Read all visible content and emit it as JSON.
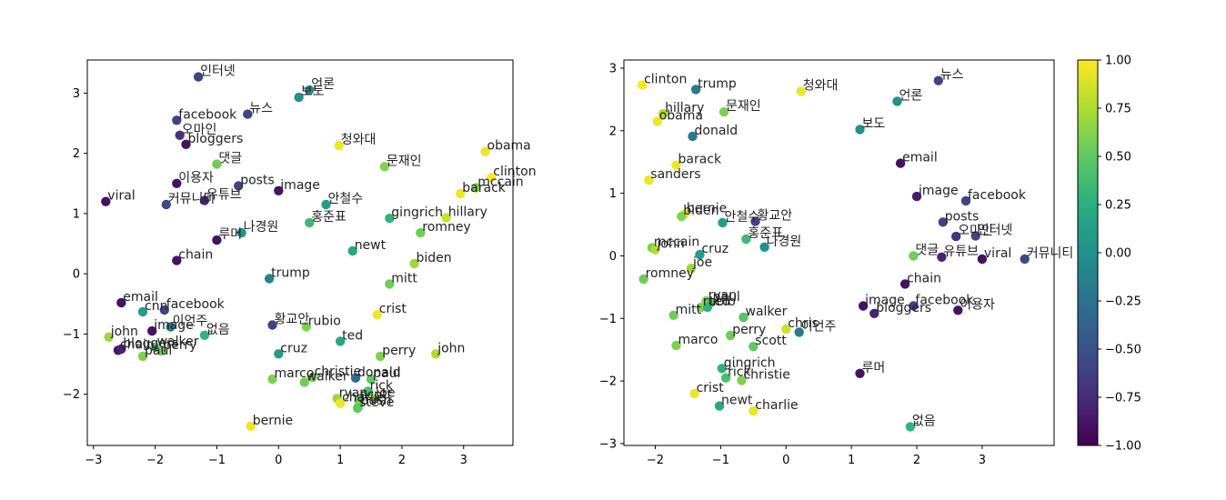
{
  "chart_data": [
    {
      "type": "scatter",
      "title": "",
      "xlabel": "",
      "ylabel": "",
      "xlim": [
        -3.1,
        3.8
      ],
      "ylim": [
        -2.85,
        3.55
      ],
      "xticks": [
        -3,
        -2,
        -1,
        0,
        1,
        2,
        3
      ],
      "yticks": [
        -2,
        -1,
        0,
        1,
        2,
        3
      ],
      "grid": false,
      "colormap": "viridis",
      "points": [
        {
          "label": "인터넷",
          "x": -1.3,
          "y": 3.27,
          "c": -0.6
        },
        {
          "label": "언론",
          "x": 0.5,
          "y": 3.05,
          "c": 0.0
        },
        {
          "label": "보도",
          "x": 0.33,
          "y": 2.93,
          "c": 0.0
        },
        {
          "label": "facebook",
          "x": -1.65,
          "y": 2.55,
          "c": -0.6
        },
        {
          "label": "뉴스",
          "x": -0.5,
          "y": 2.65,
          "c": -0.6
        },
        {
          "label": "오마인",
          "x": -1.6,
          "y": 2.3,
          "c": -0.7
        },
        {
          "label": "bloggers",
          "x": -1.5,
          "y": 2.15,
          "c": -0.9
        },
        {
          "label": "청와대",
          "x": 0.98,
          "y": 2.13,
          "c": 0.95
        },
        {
          "label": "obama",
          "x": 3.35,
          "y": 2.03,
          "c": 0.95
        },
        {
          "label": "댓글",
          "x": -1.0,
          "y": 1.82,
          "c": 0.55
        },
        {
          "label": "문재인",
          "x": 1.72,
          "y": 1.78,
          "c": 0.6
        },
        {
          "label": "clinton",
          "x": 3.45,
          "y": 1.6,
          "c": 1.0
        },
        {
          "label": "이용자",
          "x": -1.65,
          "y": 1.5,
          "c": -0.9
        },
        {
          "label": "posts",
          "x": -0.65,
          "y": 1.46,
          "c": -0.6
        },
        {
          "label": "image",
          "x": 0.0,
          "y": 1.38,
          "c": -0.9
        },
        {
          "label": "mccain",
          "x": 3.2,
          "y": 1.43,
          "c": 0.6
        },
        {
          "label": "barack",
          "x": 2.95,
          "y": 1.33,
          "c": 0.95
        },
        {
          "label": "viral",
          "x": -2.8,
          "y": 1.2,
          "c": -0.9
        },
        {
          "label": "유튜브",
          "x": -1.2,
          "y": 1.22,
          "c": -0.8
        },
        {
          "label": "커뮤니티",
          "x": -1.82,
          "y": 1.15,
          "c": -0.55
        },
        {
          "label": "안철수",
          "x": 0.77,
          "y": 1.15,
          "c": 0.1
        },
        {
          "label": "gingrich",
          "x": 1.8,
          "y": 0.92,
          "c": 0.3
        },
        {
          "label": "hillary",
          "x": 2.72,
          "y": 0.93,
          "c": 0.85
        },
        {
          "label": "홍준표",
          "x": 0.5,
          "y": 0.85,
          "c": 0.35
        },
        {
          "label": "나경원",
          "x": -0.6,
          "y": 0.68,
          "c": 0.0
        },
        {
          "label": "romney",
          "x": 2.3,
          "y": 0.68,
          "c": 0.55
        },
        {
          "label": "루머",
          "x": -1.0,
          "y": 0.56,
          "c": -0.9
        },
        {
          "label": "newt",
          "x": 1.2,
          "y": 0.38,
          "c": 0.2
        },
        {
          "label": "chain",
          "x": -1.65,
          "y": 0.22,
          "c": -0.9
        },
        {
          "label": "biden",
          "x": 2.2,
          "y": 0.17,
          "c": 0.7
        },
        {
          "label": "trump",
          "x": -0.15,
          "y": -0.08,
          "c": -0.1
        },
        {
          "label": "mitt",
          "x": 1.8,
          "y": -0.17,
          "c": 0.55
        },
        {
          "label": "email",
          "x": -2.55,
          "y": -0.48,
          "c": -0.9
        },
        {
          "label": "facebook",
          "x": -1.85,
          "y": -0.6,
          "c": -0.6
        },
        {
          "label": "cnn",
          "x": -2.2,
          "y": -0.63,
          "c": 0.1
        },
        {
          "label": "crist",
          "x": 1.6,
          "y": -0.68,
          "c": 0.95
        },
        {
          "label": "황교안",
          "x": -0.1,
          "y": -0.85,
          "c": -0.6
        },
        {
          "label": "rubio",
          "x": 0.45,
          "y": -0.88,
          "c": 0.6
        },
        {
          "label": "이언주",
          "x": -1.75,
          "y": -0.88,
          "c": -0.2
        },
        {
          "label": "image",
          "x": -2.05,
          "y": -0.95,
          "c": -0.9
        },
        {
          "label": "없음",
          "x": -1.2,
          "y": -1.02,
          "c": 0.3
        },
        {
          "label": "john",
          "x": -2.75,
          "y": -1.05,
          "c": 0.7
        },
        {
          "label": "ted",
          "x": 1.0,
          "y": -1.12,
          "c": 0.2
        },
        {
          "label": "walker",
          "x": -2.0,
          "y": -1.22,
          "c": 0.45
        },
        {
          "label": "perry",
          "x": -1.9,
          "y": -1.28,
          "c": 0.55
        },
        {
          "label": "chain",
          "x": -2.6,
          "y": -1.27,
          "c": -0.9
        },
        {
          "label": "bloggers",
          "x": -2.55,
          "y": -1.25,
          "c": -0.8
        },
        {
          "label": "paul",
          "x": -2.2,
          "y": -1.37,
          "c": 0.6
        },
        {
          "label": "cruz",
          "x": 0.0,
          "y": -1.33,
          "c": 0.1
        },
        {
          "label": "perry",
          "x": 1.65,
          "y": -1.37,
          "c": 0.6
        },
        {
          "label": "john",
          "x": 2.55,
          "y": -1.33,
          "c": 0.75
        },
        {
          "label": "marco",
          "x": -0.1,
          "y": -1.75,
          "c": 0.6
        },
        {
          "label": "christie",
          "x": 0.55,
          "y": -1.72,
          "c": 0.6
        },
        {
          "label": "donald",
          "x": 1.25,
          "y": -1.73,
          "c": -0.3
        },
        {
          "label": "paul",
          "x": 1.5,
          "y": -1.75,
          "c": 0.5
        },
        {
          "label": "walker",
          "x": 0.42,
          "y": -1.8,
          "c": 0.55
        },
        {
          "label": "rick",
          "x": 1.45,
          "y": -1.95,
          "c": 0.4
        },
        {
          "label": "scott",
          "x": 1.3,
          "y": -2.1,
          "c": 0.5
        },
        {
          "label": "ryan",
          "x": 0.95,
          "y": -2.07,
          "c": 0.7
        },
        {
          "label": "charlie",
          "x": 1.0,
          "y": -2.15,
          "c": 0.95
        },
        {
          "label": "joe",
          "x": 1.55,
          "y": -2.07,
          "c": 0.7
        },
        {
          "label": "bush",
          "x": 1.3,
          "y": -2.2,
          "c": 0.6
        },
        {
          "label": "steve",
          "x": 1.28,
          "y": -2.23,
          "c": 0.5
        },
        {
          "label": "bernie",
          "x": -0.45,
          "y": -2.53,
          "c": 0.95
        }
      ]
    },
    {
      "type": "scatter",
      "title": "",
      "xlabel": "",
      "ylabel": "",
      "xlim": [
        -2.48,
        4.1
      ],
      "ylim": [
        -3.03,
        3.13
      ],
      "xticks": [
        -2,
        -1,
        0,
        1,
        2,
        3
      ],
      "yticks": [
        -3,
        -2,
        -1,
        0,
        1,
        2,
        3
      ],
      "grid": false,
      "colormap": "viridis",
      "colorbar": {
        "min": -1.0,
        "max": 1.0,
        "ticks": [
          "1.00",
          "0.75",
          "0.50",
          "0.25",
          "0.00",
          "−0.25",
          "−0.50",
          "−0.75",
          "−1.00"
        ]
      },
      "points": [
        {
          "label": "clinton",
          "x": -2.2,
          "y": 2.73,
          "c": 1.0
        },
        {
          "label": "trump",
          "x": -1.38,
          "y": 2.66,
          "c": -0.2
        },
        {
          "label": "청와대",
          "x": 0.23,
          "y": 2.63,
          "c": 0.95
        },
        {
          "label": "뉴스",
          "x": 2.33,
          "y": 2.8,
          "c": -0.6
        },
        {
          "label": "언론",
          "x": 1.7,
          "y": 2.47,
          "c": 0.0
        },
        {
          "label": "hillary",
          "x": -1.88,
          "y": 2.27,
          "c": 0.75
        },
        {
          "label": "문재인",
          "x": -0.95,
          "y": 2.3,
          "c": 0.6
        },
        {
          "label": "obama",
          "x": -1.97,
          "y": 2.15,
          "c": 0.95
        },
        {
          "label": "보도",
          "x": 1.13,
          "y": 2.02,
          "c": 0.0
        },
        {
          "label": "donald",
          "x": -1.43,
          "y": 1.91,
          "c": -0.2
        },
        {
          "label": "email",
          "x": 1.75,
          "y": 1.48,
          "c": -0.9
        },
        {
          "label": "barack",
          "x": -1.68,
          "y": 1.45,
          "c": 0.95
        },
        {
          "label": "sanders",
          "x": -2.1,
          "y": 1.21,
          "c": 0.95
        },
        {
          "label": "image",
          "x": 2.0,
          "y": 0.95,
          "c": -0.85
        },
        {
          "label": "facebook",
          "x": 2.75,
          "y": 0.88,
          "c": -0.6
        },
        {
          "label": "bernie",
          "x": -1.55,
          "y": 0.67,
          "c": 0.95
        },
        {
          "label": "biden",
          "x": -1.6,
          "y": 0.63,
          "c": 0.6
        },
        {
          "label": "안철수",
          "x": -0.97,
          "y": 0.53,
          "c": 0.1
        },
        {
          "label": "황교안",
          "x": -0.47,
          "y": 0.55,
          "c": -0.6
        },
        {
          "label": "posts",
          "x": 2.4,
          "y": 0.54,
          "c": -0.6
        },
        {
          "label": "인터넷",
          "x": 2.9,
          "y": 0.32,
          "c": -0.6
        },
        {
          "label": "오마인",
          "x": 2.6,
          "y": 0.31,
          "c": -0.7
        },
        {
          "label": "홍준표",
          "x": -0.61,
          "y": 0.27,
          "c": 0.35
        },
        {
          "label": "나경원",
          "x": -0.33,
          "y": 0.14,
          "c": 0.0
        },
        {
          "label": "mccain",
          "x": -2.05,
          "y": 0.13,
          "c": 0.6
        },
        {
          "label": "john",
          "x": -2.0,
          "y": 0.1,
          "c": 0.75
        },
        {
          "label": "cruz",
          "x": -1.32,
          "y": 0.02,
          "c": 0.1
        },
        {
          "label": "댓글",
          "x": 1.95,
          "y": 0.0,
          "c": 0.55
        },
        {
          "label": "유튜브",
          "x": 2.38,
          "y": -0.02,
          "c": -0.8
        },
        {
          "label": "viral",
          "x": 3.0,
          "y": -0.05,
          "c": -0.9
        },
        {
          "label": "커뮤니티",
          "x": 3.65,
          "y": -0.05,
          "c": -0.55
        },
        {
          "label": "joe",
          "x": -1.45,
          "y": -0.2,
          "c": 0.7
        },
        {
          "label": "romney",
          "x": -2.18,
          "y": -0.37,
          "c": 0.55
        },
        {
          "label": "chain",
          "x": 1.82,
          "y": -0.45,
          "c": -0.9
        },
        {
          "label": "ryan",
          "x": -1.22,
          "y": -0.72,
          "c": 0.6
        },
        {
          "label": "paul",
          "x": -1.15,
          "y": -0.75,
          "c": 0.5
        },
        {
          "label": "rubio",
          "x": -1.3,
          "y": -0.82,
          "c": 0.6
        },
        {
          "label": "ted",
          "x": -1.2,
          "y": -0.82,
          "c": 0.3
        },
        {
          "label": "image",
          "x": 1.18,
          "y": -0.8,
          "c": -0.9
        },
        {
          "label": "facebook",
          "x": 1.95,
          "y": -0.8,
          "c": -0.6
        },
        {
          "label": "bloggers",
          "x": 1.35,
          "y": -0.92,
          "c": -0.8
        },
        {
          "label": "이용자",
          "x": 2.63,
          "y": -0.87,
          "c": -0.9
        },
        {
          "label": "mitt",
          "x": -1.72,
          "y": -0.95,
          "c": 0.55
        },
        {
          "label": "walker",
          "x": -0.65,
          "y": -0.98,
          "c": 0.45
        },
        {
          "label": "chris",
          "x": 0.0,
          "y": -1.17,
          "c": 0.85
        },
        {
          "label": "이언주",
          "x": 0.2,
          "y": -1.22,
          "c": -0.2
        },
        {
          "label": "perry",
          "x": -0.85,
          "y": -1.27,
          "c": 0.55
        },
        {
          "label": "marco",
          "x": -1.68,
          "y": -1.43,
          "c": 0.6
        },
        {
          "label": "scott",
          "x": -0.5,
          "y": -1.45,
          "c": 0.5
        },
        {
          "label": "gingrich",
          "x": -0.98,
          "y": -1.8,
          "c": 0.3
        },
        {
          "label": "루머",
          "x": 1.13,
          "y": -1.88,
          "c": -0.9
        },
        {
          "label": "rick",
          "x": -0.92,
          "y": -1.95,
          "c": 0.4
        },
        {
          "label": "christie",
          "x": -0.68,
          "y": -1.99,
          "c": 0.6
        },
        {
          "label": "crist",
          "x": -1.4,
          "y": -2.2,
          "c": 0.95
        },
        {
          "label": "newt",
          "x": -1.02,
          "y": -2.4,
          "c": 0.2
        },
        {
          "label": "charlie",
          "x": -0.5,
          "y": -2.48,
          "c": 0.95
        },
        {
          "label": "없음",
          "x": 1.9,
          "y": -2.73,
          "c": 0.3
        }
      ]
    }
  ]
}
